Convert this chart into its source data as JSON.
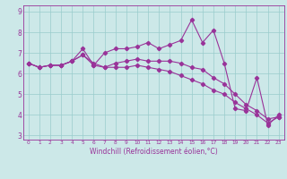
{
  "xlabel": "Windchill (Refroidissement éolien,°C)",
  "background_color": "#cce8e8",
  "line_color": "#993399",
  "grid_color": "#99cccc",
  "xlim": [
    -0.5,
    23.5
  ],
  "ylim": [
    2.8,
    9.3
  ],
  "xticks": [
    0,
    1,
    2,
    3,
    4,
    5,
    6,
    7,
    8,
    9,
    10,
    11,
    12,
    13,
    14,
    15,
    16,
    17,
    18,
    19,
    20,
    21,
    22,
    23
  ],
  "yticks": [
    3,
    4,
    5,
    6,
    7,
    8,
    9
  ],
  "series": [
    [
      6.5,
      6.3,
      6.4,
      6.4,
      6.6,
      7.2,
      6.4,
      7.0,
      7.2,
      7.2,
      7.3,
      7.5,
      7.2,
      7.4,
      7.6,
      8.6,
      7.5,
      8.1,
      6.5,
      4.3,
      4.2,
      5.8,
      3.5,
      4.0
    ],
    [
      6.5,
      6.3,
      6.4,
      6.4,
      6.6,
      6.9,
      6.5,
      6.3,
      6.5,
      6.6,
      6.7,
      6.6,
      6.6,
      6.6,
      6.5,
      6.3,
      6.2,
      5.8,
      5.5,
      5.0,
      4.5,
      4.2,
      3.8,
      3.9
    ],
    [
      6.5,
      6.3,
      6.4,
      6.4,
      6.6,
      6.9,
      6.4,
      6.3,
      6.3,
      6.3,
      6.4,
      6.3,
      6.2,
      6.1,
      5.9,
      5.7,
      5.5,
      5.2,
      5.0,
      4.6,
      4.3,
      4.0,
      3.6,
      3.9
    ]
  ],
  "marker": "D",
  "marker_size": 2.2,
  "line_width": 0.8,
  "tick_fontsize_x": 4.2,
  "tick_fontsize_y": 5.5,
  "xlabel_fontsize": 5.5
}
